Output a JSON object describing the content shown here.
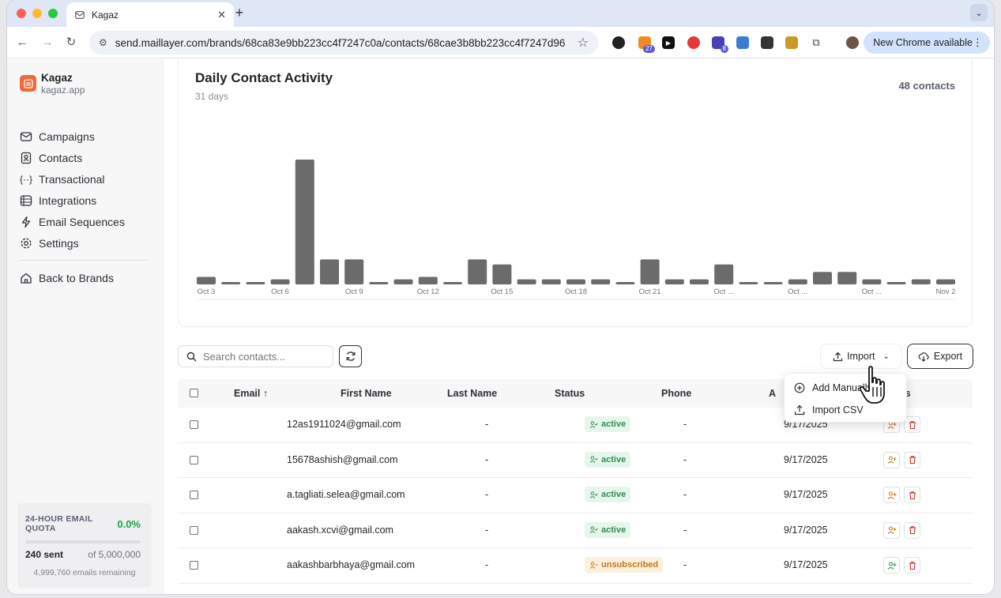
{
  "browser": {
    "tab_title": "Kagaz",
    "url": "send.maillayer.com/brands/68ca83e9bb223cc4f7247c0a/contacts/68cae3b8bb223cc4f7247d96",
    "new_chrome_label": "New Chrome available",
    "ext_badges": [
      "27",
      "8"
    ]
  },
  "sidebar": {
    "brand_name": "Kagaz",
    "brand_domain": "kagaz.app",
    "items": [
      {
        "label": "Campaigns",
        "icon": "mail-icon"
      },
      {
        "label": "Contacts",
        "icon": "contacts-icon"
      },
      {
        "label": "Transactional",
        "icon": "braces-icon"
      },
      {
        "label": "Integrations",
        "icon": "integrations-icon"
      },
      {
        "label": "Email Sequences",
        "icon": "bolt-icon"
      },
      {
        "label": "Settings",
        "icon": "gear-icon"
      }
    ],
    "back_label": "Back to Brands",
    "quota": {
      "title": "24-HOUR EMAIL QUOTA",
      "percent": "0.0%",
      "sent": "240 sent",
      "of": "of 5,000,000",
      "remaining": "4,999,760 emails remaining"
    }
  },
  "activity": {
    "title": "Daily Contact Activity",
    "subtitle": "31 days",
    "count": "48 contacts"
  },
  "chart_data": {
    "type": "bar",
    "title": "Daily Contact Activity",
    "categories": [
      "Oct 3",
      "Oct 4",
      "Oct 5",
      "Oct 6",
      "Oct 7",
      "Oct 8",
      "Oct 9",
      "Oct 10",
      "Oct 11",
      "Oct 12",
      "Oct 13",
      "Oct 14",
      "Oct 15",
      "Oct 16",
      "Oct 17",
      "Oct 18",
      "Oct 19",
      "Oct 20",
      "Oct 21",
      "Oct 22",
      "Oct 23",
      "Oct 24",
      "Oct 25",
      "Oct 26",
      "Oct 27",
      "Oct 28",
      "Oct 29",
      "Oct 30",
      "Oct 31",
      "Nov 1",
      "Nov 2"
    ],
    "tick_labels": [
      "Oct 3",
      "",
      "",
      "Oct 6",
      "",
      "",
      "Oct 9",
      "",
      "",
      "Oct 12",
      "",
      "",
      "Oct 15",
      "",
      "",
      "Oct 18",
      "",
      "",
      "Oct 21",
      "",
      "",
      "Oct ...",
      "",
      "",
      "Oct ...",
      "",
      "",
      "Oct ...",
      "",
      "",
      "Nov 2"
    ],
    "values": [
      3,
      0,
      0,
      2,
      50,
      10,
      10,
      0,
      2,
      3,
      0,
      10,
      8,
      2,
      2,
      2,
      2,
      0,
      10,
      2,
      2,
      8,
      0,
      0,
      2,
      5,
      5,
      2,
      0,
      2,
      2
    ],
    "ylim": [
      0,
      50
    ],
    "bar_color": "#6b6b6b",
    "grid": false
  },
  "toolbar": {
    "search_placeholder": "Search contacts...",
    "import_label": "Import",
    "export_label": "Export"
  },
  "import_menu": {
    "items": [
      "Add Manually",
      "Import CSV"
    ]
  },
  "table": {
    "headers": {
      "email": "Email ↑",
      "first_name": "First Name",
      "last_name": "Last Name",
      "status": "Status",
      "phone": "Phone",
      "added": "A",
      "actions": "ns"
    },
    "rows": [
      {
        "email": "12as1911024@gmail.com",
        "first_name": "-",
        "status": "active",
        "status_kind": "active",
        "phone": "-",
        "added": "9/17/2025"
      },
      {
        "email": "15678ashish@gmail.com",
        "first_name": "-",
        "status": "active",
        "status_kind": "active",
        "phone": "-",
        "added": "9/17/2025"
      },
      {
        "email": "a.tagliati.selea@gmail.com",
        "first_name": "-",
        "status": "active",
        "status_kind": "active",
        "phone": "-",
        "added": "9/17/2025"
      },
      {
        "email": "aakash.xcvi@gmail.com",
        "first_name": "-",
        "status": "active",
        "status_kind": "active",
        "phone": "-",
        "added": "9/17/2025"
      },
      {
        "email": "aakashbarbhaya@gmail.com",
        "first_name": "-",
        "status": "unsubscribed",
        "status_kind": "unsub",
        "phone": "-",
        "added": "9/17/2025"
      }
    ]
  }
}
